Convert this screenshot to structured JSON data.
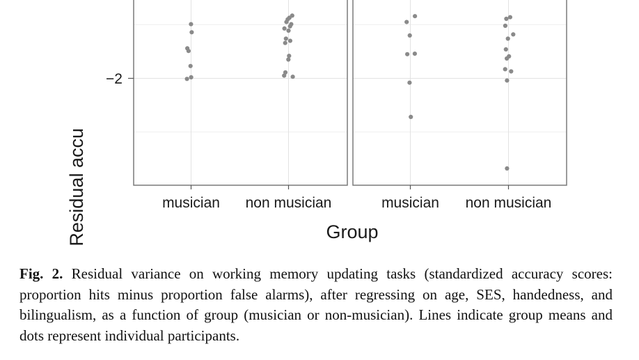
{
  "chart_data": {
    "type": "scatter",
    "ylabel": "Residual accu",
    "xlabel": "Group",
    "y_ticks": [
      "−2"
    ],
    "categories": [
      "musician",
      "non musician"
    ],
    "panels": [
      {
        "points": {
          "musician": [
            -0.99,
            -1.14,
            -1.44,
            -1.49,
            -1.77,
            -1.98,
            -2.01
          ],
          "non musician": [
            -0.83,
            -0.87,
            -0.9,
            -0.95,
            -0.99,
            -1.03,
            -1.07,
            -1.11,
            -1.26,
            -1.3,
            -1.34,
            -1.58,
            -1.65,
            -1.89,
            -1.95,
            -1.97
          ]
        }
      },
      {
        "points": {
          "musician": [
            -0.84,
            -0.95,
            -1.2,
            -1.54,
            -1.55,
            -2.08,
            -2.72
          ],
          "non musician": [
            -0.86,
            -0.89,
            -1.02,
            -1.18,
            -1.26,
            -1.46,
            -1.59,
            -1.63,
            -1.83,
            -1.87,
            -2.04,
            -3.68
          ]
        }
      }
    ],
    "grid": true,
    "point_color": "#8a8a8a"
  },
  "caption": {
    "label": "Fig. 2.",
    "text": "Residual variance on working memory updating tasks (standardized accuracy scores: proportion hits minus proportion false alarms), after regressing on age, SES, handedness, and bilingualism, as a function of group (musician or non-musician). Lines indicate group means and dots represent individual participants."
  }
}
